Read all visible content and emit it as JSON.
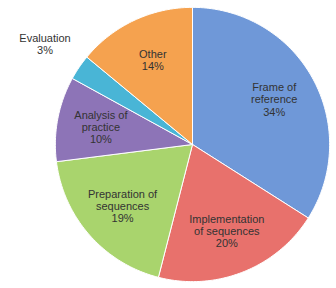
{
  "chart_data": {
    "type": "pie",
    "categories": [
      "Frame of reference",
      "Implementation of sequences",
      "Preparation of sequences",
      "Analysis of practice",
      "Evaluation",
      "Other"
    ],
    "values": [
      34,
      20,
      19,
      10,
      3,
      14
    ],
    "value_labels": [
      "34%",
      "20%",
      "19%",
      "10%",
      "3%",
      "14%"
    ],
    "colors": [
      "#6f98d8",
      "#e8716c",
      "#a9d46d",
      "#8d74b7",
      "#49b5d6",
      "#f5a24f"
    ],
    "data_labels": true
  }
}
